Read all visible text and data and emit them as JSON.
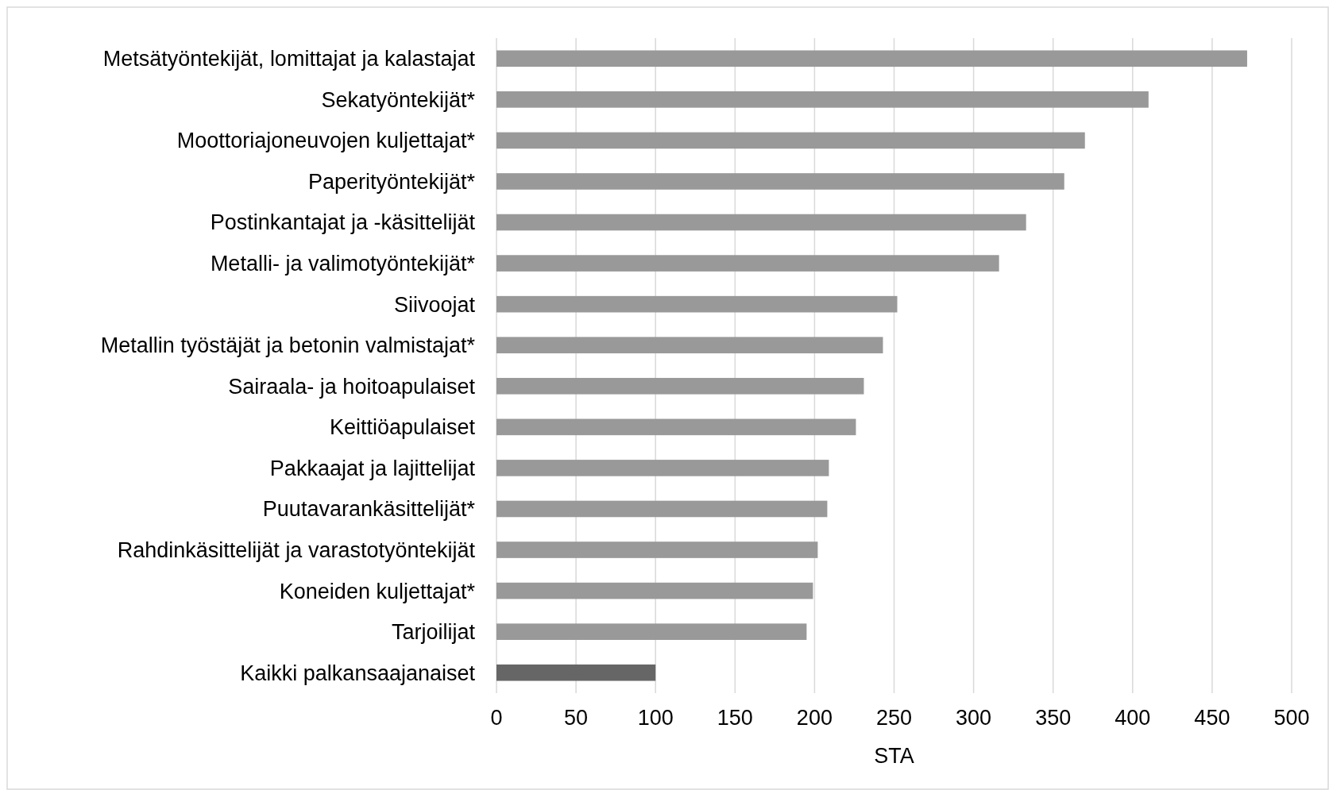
{
  "chart_data": {
    "type": "bar",
    "orientation": "horizontal",
    "xlabel": "STA",
    "categories": [
      "Metsätyöntekijät, lomittajat ja kalastajat",
      "Sekatyöntekijät*",
      "Moottoriajoneuvojen kuljettajat*",
      "Paperityöntekijät*",
      "Postinkantajat ja -käsittelijät",
      "Metalli- ja valimotyöntekijät*",
      "Siivoojat",
      "Metallin työstäjät ja betonin valmistajat*",
      "Sairaala- ja hoitoapulaiset",
      "Keittiöapulaiset",
      "Pakkaajat ja lajittelijat",
      "Puutavarankäsittelijät*",
      "Rahdinkäsittelijät ja varastotyöntekijät",
      "Koneiden kuljettajat*",
      "Tarjoilijat",
      "Kaikki palkansaajanaiset"
    ],
    "values": [
      472,
      410,
      370,
      357,
      333,
      316,
      252,
      243,
      231,
      226,
      209,
      208,
      202,
      199,
      195,
      100
    ],
    "colors": [
      "#999999",
      "#999999",
      "#999999",
      "#999999",
      "#999999",
      "#999999",
      "#999999",
      "#999999",
      "#999999",
      "#999999",
      "#999999",
      "#999999",
      "#999999",
      "#999999",
      "#999999",
      "#666666"
    ],
    "xlim": [
      0,
      500
    ],
    "xticks": [
      0,
      50,
      100,
      150,
      200,
      250,
      300,
      350,
      400,
      450,
      500
    ],
    "grid": "x"
  }
}
